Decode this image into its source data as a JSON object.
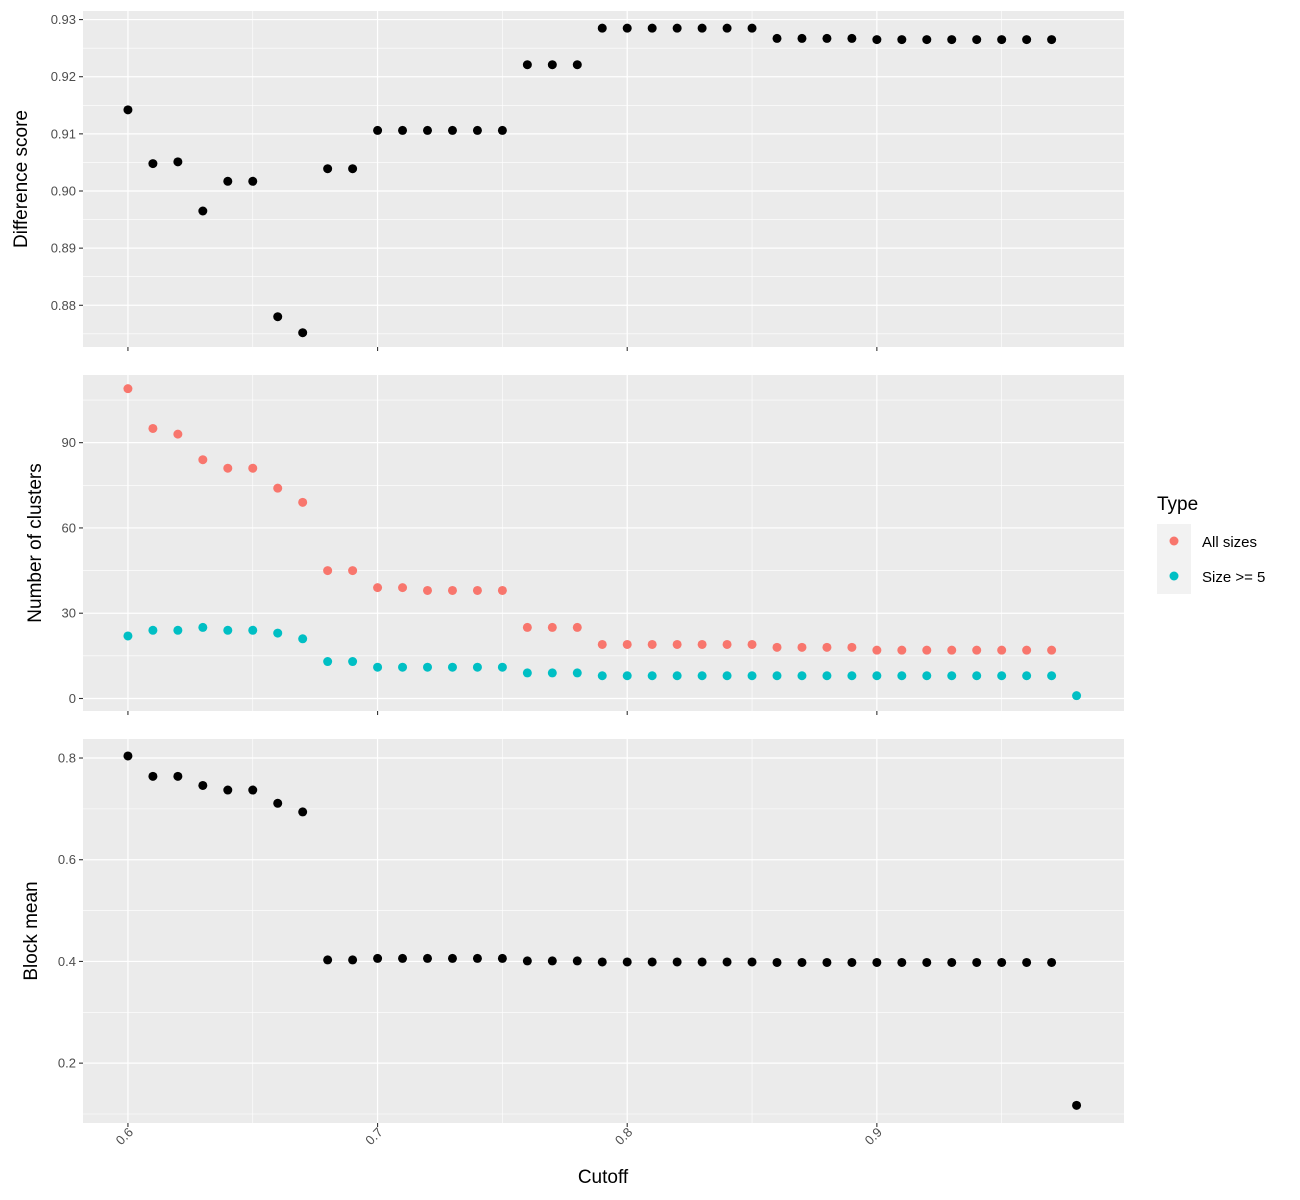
{
  "chart_data": [
    {
      "type": "scatter",
      "ylabel": "Difference score",
      "yticks": [
        "0.88",
        "0.89",
        "0.90",
        "0.91",
        "0.92",
        "0.93"
      ],
      "ylim": [
        0.8727,
        0.9315
      ],
      "series": [
        {
          "color": "#000000",
          "x": [
            0.6,
            0.61,
            0.62,
            0.63,
            0.64,
            0.65,
            0.66,
            0.67,
            0.68,
            0.69,
            0.7,
            0.71,
            0.72,
            0.73,
            0.74,
            0.75,
            0.76,
            0.77,
            0.78,
            0.79,
            0.8,
            0.81,
            0.82,
            0.83,
            0.84,
            0.85,
            0.86,
            0.87,
            0.88,
            0.89,
            0.9,
            0.91,
            0.92,
            0.93,
            0.94,
            0.95,
            0.96,
            0.97
          ],
          "y": [
            0.9142,
            0.9048,
            0.9051,
            0.8965,
            0.9017,
            0.9017,
            0.878,
            0.8752,
            0.9039,
            0.9039,
            0.9106,
            0.9106,
            0.9106,
            0.9106,
            0.9106,
            0.9106,
            0.9221,
            0.9221,
            0.9221,
            0.9285,
            0.9285,
            0.9285,
            0.9285,
            0.9285,
            0.9285,
            0.9285,
            0.9267,
            0.9267,
            0.9267,
            0.9267,
            0.9265,
            0.9265,
            0.9265,
            0.9265,
            0.9265,
            0.9265,
            0.9265,
            0.9265
          ]
        }
      ]
    },
    {
      "type": "scatter",
      "ylabel": "Number of clusters",
      "yticks": [
        "0",
        "30",
        "60",
        "90"
      ],
      "ylim": [
        -4.4,
        113.8
      ],
      "legend": {
        "title": "Type",
        "position": "right"
      },
      "series": [
        {
          "name": "All sizes",
          "color": "#F8766D",
          "x": [
            0.6,
            0.61,
            0.62,
            0.63,
            0.64,
            0.65,
            0.66,
            0.67,
            0.68,
            0.69,
            0.7,
            0.71,
            0.72,
            0.73,
            0.74,
            0.75,
            0.76,
            0.77,
            0.78,
            0.79,
            0.8,
            0.81,
            0.82,
            0.83,
            0.84,
            0.85,
            0.86,
            0.87,
            0.88,
            0.89,
            0.9,
            0.91,
            0.92,
            0.93,
            0.94,
            0.95,
            0.96,
            0.97
          ],
          "y": [
            109,
            95,
            93,
            84,
            81,
            81,
            74,
            69,
            45,
            45,
            39,
            39,
            38,
            38,
            38,
            38,
            25,
            25,
            25,
            19,
            19,
            19,
            19,
            19,
            19,
            19,
            18,
            18,
            18,
            18,
            17,
            17,
            17,
            17,
            17,
            17,
            17,
            17
          ]
        },
        {
          "name": "Size >= 5",
          "color": "#00BFC4",
          "x": [
            0.6,
            0.61,
            0.62,
            0.63,
            0.64,
            0.65,
            0.66,
            0.67,
            0.68,
            0.69,
            0.7,
            0.71,
            0.72,
            0.73,
            0.74,
            0.75,
            0.76,
            0.77,
            0.78,
            0.79,
            0.8,
            0.81,
            0.82,
            0.83,
            0.84,
            0.85,
            0.86,
            0.87,
            0.88,
            0.89,
            0.9,
            0.91,
            0.92,
            0.93,
            0.94,
            0.95,
            0.96,
            0.97,
            0.98
          ],
          "y": [
            22,
            24,
            24,
            25,
            24,
            24,
            23,
            21,
            13,
            13,
            11,
            11,
            11,
            11,
            11,
            11,
            9,
            9,
            9,
            8,
            8,
            8,
            8,
            8,
            8,
            8,
            8,
            8,
            8,
            8,
            8,
            8,
            8,
            8,
            8,
            8,
            8,
            8,
            1
          ]
        }
      ]
    },
    {
      "type": "scatter",
      "ylabel": "Block mean",
      "xlabel": "Cutoff",
      "xticks": [
        "0.6",
        "0.7",
        "0.8",
        "0.9"
      ],
      "ylim": [
        0.0823,
        0.8374
      ],
      "yticks": [
        "0.2",
        "0.4",
        "0.6",
        "0.8"
      ],
      "series": [
        {
          "color": "#000000",
          "x": [
            0.6,
            0.61,
            0.62,
            0.63,
            0.64,
            0.65,
            0.66,
            0.67,
            0.68,
            0.69,
            0.7,
            0.71,
            0.72,
            0.73,
            0.74,
            0.75,
            0.76,
            0.77,
            0.78,
            0.79,
            0.8,
            0.81,
            0.82,
            0.83,
            0.84,
            0.85,
            0.86,
            0.87,
            0.88,
            0.89,
            0.9,
            0.91,
            0.92,
            0.93,
            0.94,
            0.95,
            0.96,
            0.97,
            0.98
          ],
          "y": [
            0.804,
            0.764,
            0.764,
            0.746,
            0.737,
            0.737,
            0.711,
            0.694,
            0.403,
            0.403,
            0.406,
            0.406,
            0.406,
            0.406,
            0.406,
            0.406,
            0.401,
            0.401,
            0.401,
            0.399,
            0.399,
            0.399,
            0.399,
            0.399,
            0.399,
            0.399,
            0.398,
            0.398,
            0.398,
            0.398,
            0.398,
            0.398,
            0.398,
            0.398,
            0.398,
            0.398,
            0.398,
            0.398,
            0.117
          ]
        }
      ]
    }
  ],
  "x_axis": {
    "range": [
      0.582,
      0.999
    ],
    "ticks": [
      0.6,
      0.7,
      0.8,
      0.9
    ],
    "minor": [
      0.65,
      0.75,
      0.85,
      0.95
    ]
  },
  "style": {
    "panel_bg": "#EBEBEB",
    "grid": "#FFFFFF"
  }
}
